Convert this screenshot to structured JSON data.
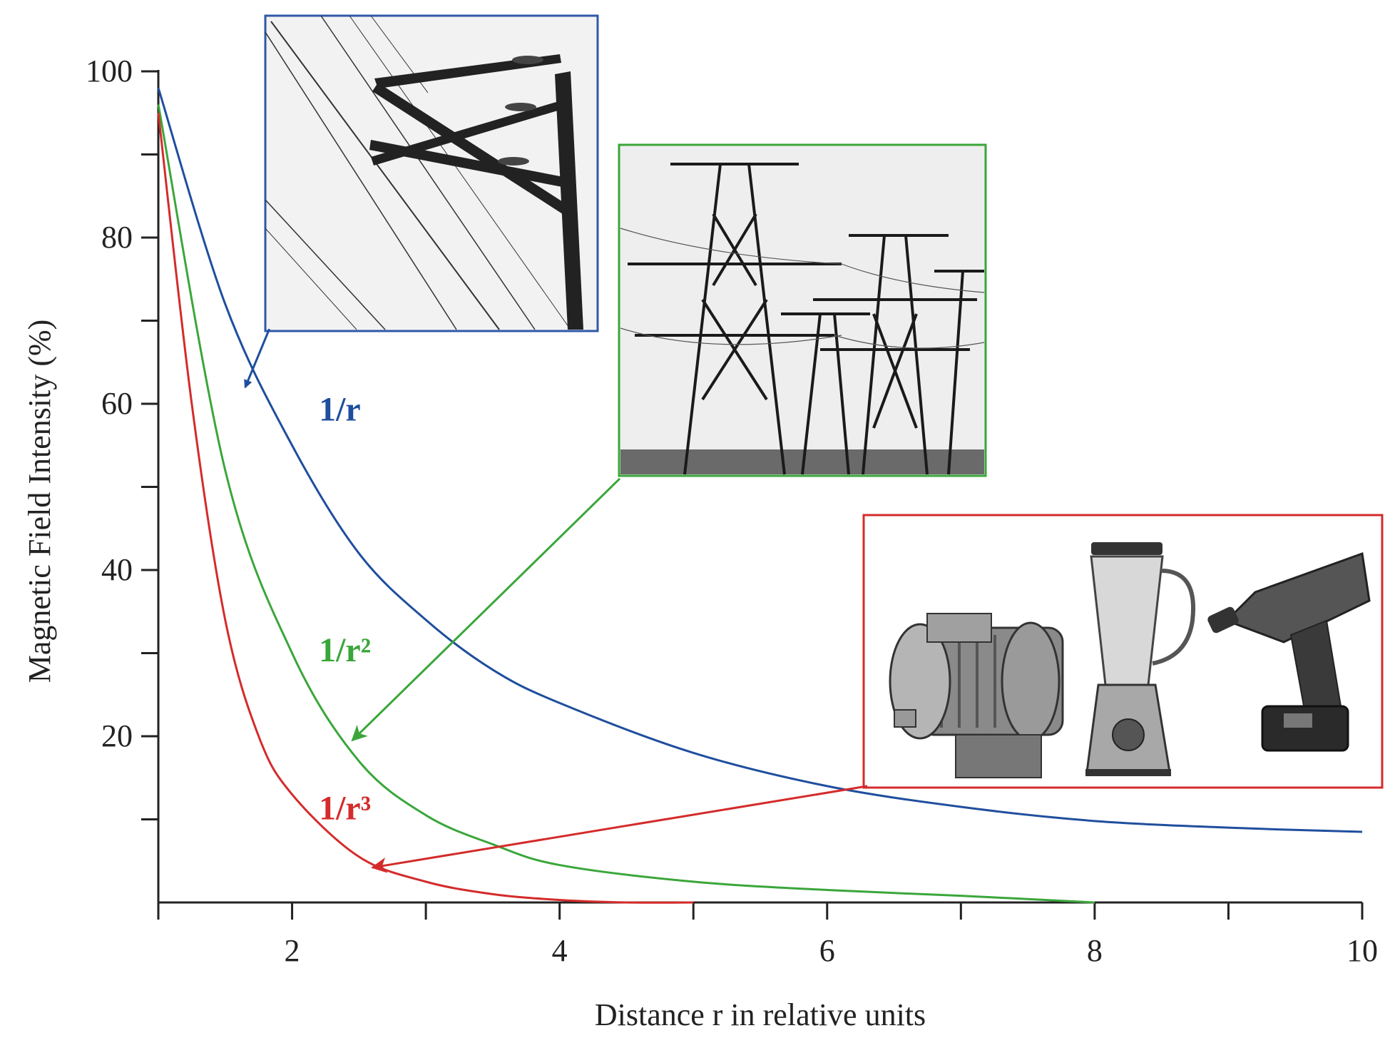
{
  "chart_data": {
    "type": "line",
    "title": "",
    "xlabel": "Distance r in relative units",
    "ylabel": "Magnetic Field Intensity (%)",
    "xlim": [
      1,
      10
    ],
    "ylim": [
      0,
      100
    ],
    "x_ticks": [
      2,
      4,
      6,
      8,
      10
    ],
    "y_ticks": [
      20,
      40,
      60,
      80,
      100
    ],
    "grid": false,
    "series": [
      {
        "name": "1/r",
        "color": "#1f4e9e",
        "x": [
          1,
          1.5,
          2,
          2.5,
          3,
          3.5,
          4,
          5,
          6,
          7,
          8,
          9,
          10
        ],
        "y": [
          98,
          72,
          55,
          42,
          34,
          28,
          24,
          18,
          14,
          11.5,
          9.8,
          9,
          8.5
        ]
      },
      {
        "name": "1/r²",
        "color": "#3aa63a",
        "x": [
          1,
          1.5,
          2,
          2.5,
          3,
          3.5,
          4,
          5,
          6,
          7,
          8
        ],
        "y": [
          96,
          52,
          30,
          17,
          10.5,
          7,
          4.5,
          2.5,
          1.5,
          0.8,
          0
        ]
      },
      {
        "name": "1/r³",
        "color": "#d42b2b",
        "x": [
          1,
          1.25,
          1.5,
          1.75,
          2,
          2.5,
          3,
          3.5,
          4,
          4.5,
          5
        ],
        "y": [
          95,
          60,
          34,
          20,
          13,
          5.5,
          2.5,
          1,
          0.3,
          0,
          0
        ]
      }
    ],
    "annotations": [
      {
        "text": "1/r",
        "color": "#1f4e9e",
        "x": 2.2,
        "y": 58
      },
      {
        "text": "1/r²",
        "color": "#3aa63a",
        "x": 2.2,
        "y": 29
      },
      {
        "text": "1/r³",
        "color": "#d42b2b",
        "x": 2.2,
        "y": 10
      }
    ],
    "arrows": [
      {
        "color": "#1f4e9e",
        "from": [
          1.83,
          69
        ],
        "to": [
          1.65,
          62
        ]
      },
      {
        "color": "#3aa63a",
        "from": [
          4.45,
          51
        ],
        "to": [
          2.45,
          19.5
        ]
      },
      {
        "color": "#d42b2b",
        "from": [
          6.3,
          14
        ],
        "to": [
          2.6,
          4.2
        ]
      }
    ],
    "inset_images": [
      {
        "name": "overhead-line-pole-photo",
        "frame_color": "#2f58a8"
      },
      {
        "name": "transmission-towers-photo",
        "frame_color": "#3aa63a"
      },
      {
        "name": "motor-blender-drill-photo",
        "frame_color": "#d42b2b"
      }
    ]
  }
}
